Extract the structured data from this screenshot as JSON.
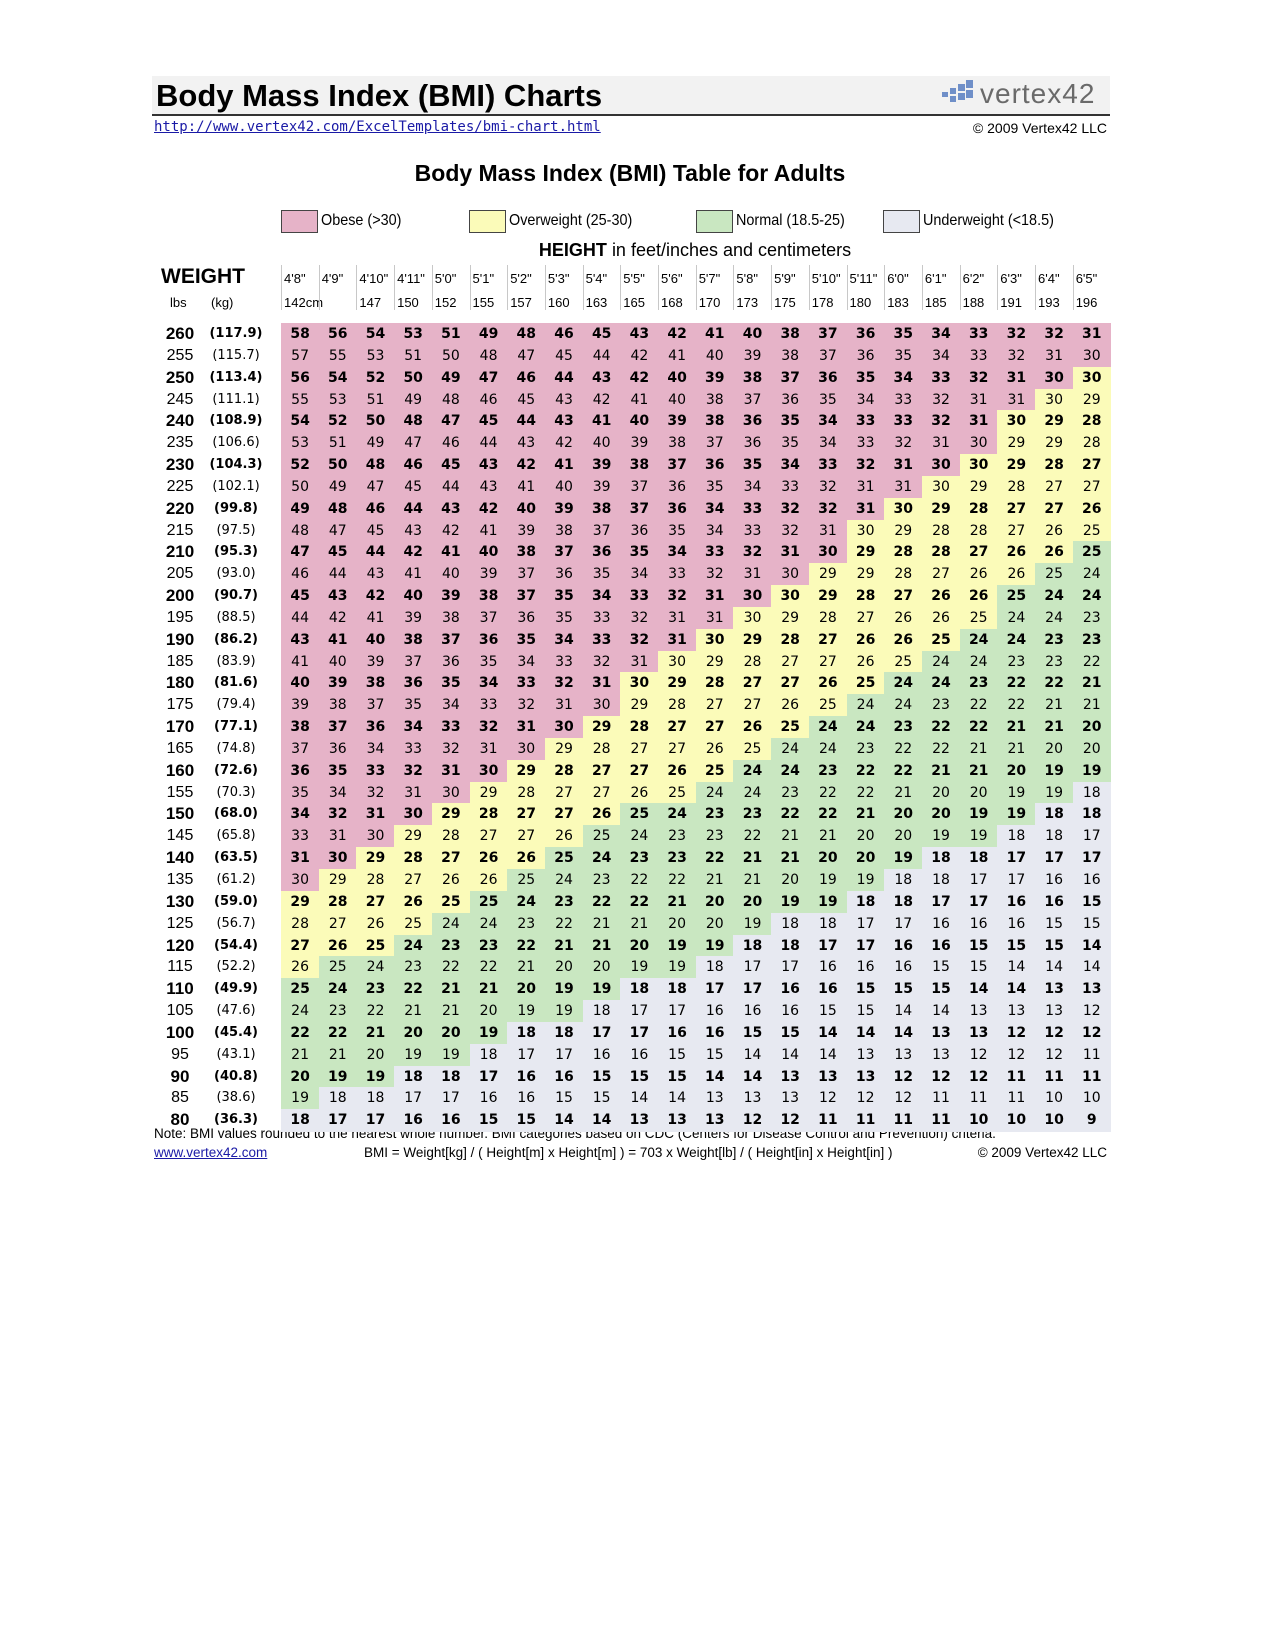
{
  "header": {
    "title": "Body Mass Index (BMI) Charts",
    "url": "http://www.vertex42.com/ExcelTemplates/bmi-chart.html",
    "copyright": "© 2009 Vertex42 LLC",
    "logo": "vertex42"
  },
  "table": {
    "title": "Body Mass Index (BMI) Table for Adults",
    "legend": [
      {
        "label": "Obese (>30)",
        "color": "#e6b3c8"
      },
      {
        "label": "Overweight (25-30)",
        "color": "#fbfbb9"
      },
      {
        "label": "Normal (18.5-25)",
        "color": "#c9e7c1"
      },
      {
        "label": "Underweight (<18.5)",
        "color": "#e7e9f1"
      }
    ],
    "height_caption": {
      "bold": "HEIGHT",
      "rest": "in feet/inches and centimeters"
    },
    "weight_label": "WEIGHT",
    "lbs_label": "lbs",
    "kg_label": "(kg)",
    "heights_ftin": [
      "4'8\"",
      "4'9\"",
      "4'10\"",
      "4'11\"",
      "5'0\"",
      "5'1\"",
      "5'2\"",
      "5'3\"",
      "5'4\"",
      "5'5\"",
      "5'6\"",
      "5'7\"",
      "5'8\"",
      "5'9\"",
      "5'10\"",
      "5'11\"",
      "6'0\"",
      "6'1\"",
      "6'2\"",
      "6'3\"",
      "6'4\"",
      "6'5\""
    ],
    "heights_cm": [
      "142cm",
      null,
      "147",
      "150",
      "152",
      "155",
      "157",
      "160",
      "163",
      "165",
      "168",
      "170",
      "173",
      "175",
      "178",
      "180",
      "183",
      "185",
      "188",
      "191",
      "193",
      "196"
    ],
    "rows": [
      {
        "lbs": 260,
        "kg": "(117.9)",
        "values": [
          58,
          56,
          54,
          53,
          51,
          49,
          48,
          46,
          45,
          43,
          42,
          41,
          40,
          38,
          37,
          36,
          35,
          34,
          33,
          32,
          32,
          31
        ]
      },
      {
        "lbs": 255,
        "kg": "(115.7)",
        "values": [
          57,
          55,
          53,
          51,
          50,
          48,
          47,
          45,
          44,
          42,
          41,
          40,
          39,
          38,
          37,
          36,
          35,
          34,
          33,
          32,
          31,
          30
        ]
      },
      {
        "lbs": 250,
        "kg": "(113.4)",
        "values": [
          56,
          54,
          52,
          50,
          49,
          47,
          46,
          44,
          43,
          42,
          40,
          39,
          38,
          37,
          36,
          35,
          34,
          33,
          32,
          31,
          30,
          30
        ]
      },
      {
        "lbs": 245,
        "kg": "(111.1)",
        "values": [
          55,
          53,
          51,
          49,
          48,
          46,
          45,
          43,
          42,
          41,
          40,
          38,
          37,
          36,
          35,
          34,
          33,
          32,
          31,
          31,
          30,
          29
        ]
      },
      {
        "lbs": 240,
        "kg": "(108.9)",
        "values": [
          54,
          52,
          50,
          48,
          47,
          45,
          44,
          43,
          41,
          40,
          39,
          38,
          36,
          35,
          34,
          33,
          33,
          32,
          31,
          30,
          29,
          28
        ]
      },
      {
        "lbs": 235,
        "kg": "(106.6)",
        "values": [
          53,
          51,
          49,
          47,
          46,
          44,
          43,
          42,
          40,
          39,
          38,
          37,
          36,
          35,
          34,
          33,
          32,
          31,
          30,
          29,
          29,
          28
        ]
      },
      {
        "lbs": 230,
        "kg": "(104.3)",
        "values": [
          52,
          50,
          48,
          46,
          45,
          43,
          42,
          41,
          39,
          38,
          37,
          36,
          35,
          34,
          33,
          32,
          31,
          30,
          30,
          29,
          28,
          27
        ]
      },
      {
        "lbs": 225,
        "kg": "(102.1)",
        "values": [
          50,
          49,
          47,
          45,
          44,
          43,
          41,
          40,
          39,
          37,
          36,
          35,
          34,
          33,
          32,
          31,
          31,
          30,
          29,
          28,
          27,
          27
        ]
      },
      {
        "lbs": 220,
        "kg": "(99.8)",
        "values": [
          49,
          48,
          46,
          44,
          43,
          42,
          40,
          39,
          38,
          37,
          36,
          34,
          33,
          32,
          32,
          31,
          30,
          29,
          28,
          27,
          27,
          26
        ]
      },
      {
        "lbs": 215,
        "kg": "(97.5)",
        "values": [
          48,
          47,
          45,
          43,
          42,
          41,
          39,
          38,
          37,
          36,
          35,
          34,
          33,
          32,
          31,
          30,
          29,
          28,
          28,
          27,
          26,
          25
        ]
      },
      {
        "lbs": 210,
        "kg": "(95.3)",
        "values": [
          47,
          45,
          44,
          42,
          41,
          40,
          38,
          37,
          36,
          35,
          34,
          33,
          32,
          31,
          30,
          29,
          28,
          28,
          27,
          26,
          26,
          25
        ]
      },
      {
        "lbs": 205,
        "kg": "(93.0)",
        "values": [
          46,
          44,
          43,
          41,
          40,
          39,
          37,
          36,
          35,
          34,
          33,
          32,
          31,
          30,
          29,
          29,
          28,
          27,
          26,
          26,
          25,
          24
        ]
      },
      {
        "lbs": 200,
        "kg": "(90.7)",
        "values": [
          45,
          43,
          42,
          40,
          39,
          38,
          37,
          35,
          34,
          33,
          32,
          31,
          30,
          30,
          29,
          28,
          27,
          26,
          26,
          25,
          24,
          24
        ]
      },
      {
        "lbs": 195,
        "kg": "(88.5)",
        "values": [
          44,
          42,
          41,
          39,
          38,
          37,
          36,
          35,
          33,
          32,
          31,
          31,
          30,
          29,
          28,
          27,
          26,
          26,
          25,
          24,
          24,
          23
        ]
      },
      {
        "lbs": 190,
        "kg": "(86.2)",
        "values": [
          43,
          41,
          40,
          38,
          37,
          36,
          35,
          34,
          33,
          32,
          31,
          30,
          29,
          28,
          27,
          26,
          26,
          25,
          24,
          24,
          23,
          23
        ]
      },
      {
        "lbs": 185,
        "kg": "(83.9)",
        "values": [
          41,
          40,
          39,
          37,
          36,
          35,
          34,
          33,
          32,
          31,
          30,
          29,
          28,
          27,
          27,
          26,
          25,
          24,
          24,
          23,
          23,
          22
        ]
      },
      {
        "lbs": 180,
        "kg": "(81.6)",
        "values": [
          40,
          39,
          38,
          36,
          35,
          34,
          33,
          32,
          31,
          30,
          29,
          28,
          27,
          27,
          26,
          25,
          24,
          24,
          23,
          22,
          22,
          21
        ]
      },
      {
        "lbs": 175,
        "kg": "(79.4)",
        "values": [
          39,
          38,
          37,
          35,
          34,
          33,
          32,
          31,
          30,
          29,
          28,
          27,
          27,
          26,
          25,
          24,
          24,
          23,
          22,
          22,
          21,
          21
        ]
      },
      {
        "lbs": 170,
        "kg": "(77.1)",
        "values": [
          38,
          37,
          36,
          34,
          33,
          32,
          31,
          30,
          29,
          28,
          27,
          27,
          26,
          25,
          24,
          24,
          23,
          22,
          22,
          21,
          21,
          20
        ]
      },
      {
        "lbs": 165,
        "kg": "(74.8)",
        "values": [
          37,
          36,
          34,
          33,
          32,
          31,
          30,
          29,
          28,
          27,
          27,
          26,
          25,
          24,
          24,
          23,
          22,
          22,
          21,
          21,
          20,
          20
        ]
      },
      {
        "lbs": 160,
        "kg": "(72.6)",
        "values": [
          36,
          35,
          33,
          32,
          31,
          30,
          29,
          28,
          27,
          27,
          26,
          25,
          24,
          24,
          23,
          22,
          22,
          21,
          21,
          20,
          19,
          19
        ]
      },
      {
        "lbs": 155,
        "kg": "(70.3)",
        "values": [
          35,
          34,
          32,
          31,
          30,
          29,
          28,
          27,
          27,
          26,
          25,
          24,
          24,
          23,
          22,
          22,
          21,
          20,
          20,
          19,
          19,
          18
        ]
      },
      {
        "lbs": 150,
        "kg": "(68.0)",
        "values": [
          34,
          32,
          31,
          30,
          29,
          28,
          27,
          27,
          26,
          25,
          24,
          23,
          23,
          22,
          22,
          21,
          20,
          20,
          19,
          19,
          18,
          18
        ]
      },
      {
        "lbs": 145,
        "kg": "(65.8)",
        "values": [
          33,
          31,
          30,
          29,
          28,
          27,
          27,
          26,
          25,
          24,
          23,
          23,
          22,
          21,
          21,
          20,
          20,
          19,
          19,
          18,
          18,
          17
        ]
      },
      {
        "lbs": 140,
        "kg": "(63.5)",
        "values": [
          31,
          30,
          29,
          28,
          27,
          26,
          26,
          25,
          24,
          23,
          23,
          22,
          21,
          21,
          20,
          20,
          19,
          18,
          18,
          17,
          17,
          17
        ]
      },
      {
        "lbs": 135,
        "kg": "(61.2)",
        "values": [
          30,
          29,
          28,
          27,
          26,
          26,
          25,
          24,
          23,
          22,
          22,
          21,
          21,
          20,
          19,
          19,
          18,
          18,
          17,
          17,
          16,
          16
        ]
      },
      {
        "lbs": 130,
        "kg": "(59.0)",
        "values": [
          29,
          28,
          27,
          26,
          25,
          25,
          24,
          23,
          22,
          22,
          21,
          20,
          20,
          19,
          19,
          18,
          18,
          17,
          17,
          16,
          16,
          15
        ]
      },
      {
        "lbs": 125,
        "kg": "(56.7)",
        "values": [
          28,
          27,
          26,
          25,
          24,
          24,
          23,
          22,
          21,
          21,
          20,
          20,
          19,
          18,
          18,
          17,
          17,
          16,
          16,
          16,
          15,
          15
        ]
      },
      {
        "lbs": 120,
        "kg": "(54.4)",
        "values": [
          27,
          26,
          25,
          24,
          23,
          23,
          22,
          21,
          21,
          20,
          19,
          19,
          18,
          18,
          17,
          17,
          16,
          16,
          15,
          15,
          15,
          14
        ]
      },
      {
        "lbs": 115,
        "kg": "(52.2)",
        "values": [
          26,
          25,
          24,
          23,
          22,
          22,
          21,
          20,
          20,
          19,
          19,
          18,
          17,
          17,
          16,
          16,
          16,
          15,
          15,
          14,
          14,
          14
        ]
      },
      {
        "lbs": 110,
        "kg": "(49.9)",
        "values": [
          25,
          24,
          23,
          22,
          21,
          21,
          20,
          19,
          19,
          18,
          18,
          17,
          17,
          16,
          16,
          15,
          15,
          15,
          14,
          14,
          13,
          13
        ]
      },
      {
        "lbs": 105,
        "kg": "(47.6)",
        "values": [
          24,
          23,
          22,
          21,
          21,
          20,
          19,
          19,
          18,
          17,
          17,
          16,
          16,
          16,
          15,
          15,
          14,
          14,
          13,
          13,
          13,
          12
        ]
      },
      {
        "lbs": 100,
        "kg": "(45.4)",
        "values": [
          22,
          22,
          21,
          20,
          20,
          19,
          18,
          18,
          17,
          17,
          16,
          16,
          15,
          15,
          14,
          14,
          14,
          13,
          13,
          12,
          12,
          12
        ]
      },
      {
        "lbs": 95,
        "kg": "(43.1)",
        "values": [
          21,
          21,
          20,
          19,
          19,
          18,
          17,
          17,
          16,
          16,
          15,
          15,
          14,
          14,
          14,
          13,
          13,
          13,
          12,
          12,
          12,
          11
        ]
      },
      {
        "lbs": 90,
        "kg": "(40.8)",
        "values": [
          20,
          19,
          19,
          18,
          18,
          17,
          16,
          16,
          15,
          15,
          15,
          14,
          14,
          13,
          13,
          13,
          12,
          12,
          12,
          11,
          11,
          11
        ]
      },
      {
        "lbs": 85,
        "kg": "(38.6)",
        "values": [
          19,
          18,
          18,
          17,
          17,
          16,
          16,
          15,
          15,
          14,
          14,
          13,
          13,
          13,
          12,
          12,
          12,
          11,
          11,
          11,
          10,
          10
        ]
      },
      {
        "lbs": 80,
        "kg": "(36.3)",
        "values": [
          18,
          17,
          17,
          16,
          16,
          15,
          15,
          14,
          14,
          13,
          13,
          13,
          12,
          12,
          11,
          11,
          11,
          11,
          10,
          10,
          10,
          9
        ]
      }
    ]
  },
  "footer": {
    "note": "Note: BMI values rounded to the nearest whole number. BMI categories based on CDC (Centers for Disease Control and Prevention) criteria.",
    "link": "www.vertex42.com",
    "formula": "BMI = Weight[kg] / ( Height[m] x Height[m] ) = 703 x Weight[lb] / ( Height[in] x Height[in] )",
    "copyright": "© 2009 Vertex42 LLC"
  }
}
